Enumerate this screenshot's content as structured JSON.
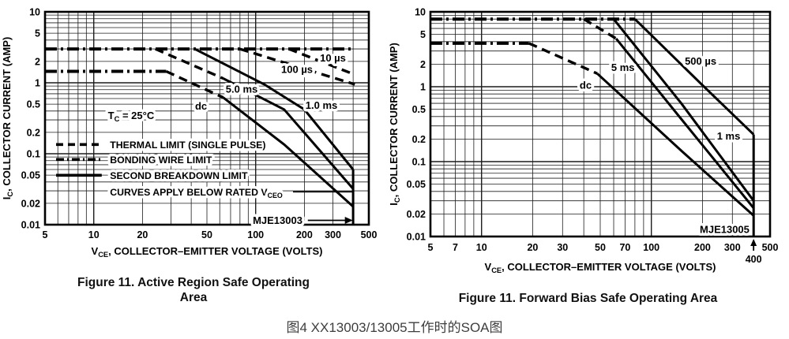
{
  "page": {
    "background": "#ffffff",
    "bottom_caption": "图4 XX13003/13005工作时的SOA图"
  },
  "figures": {
    "left": {
      "caption_line1": "Figure 11. Active Region Safe Operating",
      "caption_line2": "Area"
    },
    "right": {
      "caption": "Figure 11. Forward Bias Safe Operating Area"
    }
  },
  "chart_data": [
    {
      "type": "line",
      "device": "MJE13003",
      "title": "Figure 11. Active Region Safe Operating Area",
      "xlabel": "VCE, COLLECTOR–EMITTER VOLTAGE (VOLTS)",
      "ylabel": "IC, COLLECTOR CURRENT (AMP)",
      "xlabel_parts": [
        {
          "t": "V"
        },
        {
          "t": "CE",
          "sub": true
        },
        {
          "t": ", COLLECTOR–EMITTER VOLTAGE (VOLTS)"
        }
      ],
      "ylabel_parts": [
        {
          "t": "I"
        },
        {
          "t": "C",
          "sub": true
        },
        {
          "t": ", COLLECTOR CURRENT (AMP)"
        }
      ],
      "x_scale": "log",
      "y_scale": "log",
      "xlim": [
        5,
        500
      ],
      "ylim": [
        0.01,
        10
      ],
      "grid": true,
      "x_ticks": [
        {
          "v": 5,
          "t": "5"
        },
        {
          "v": 10,
          "t": "10"
        },
        {
          "v": 20,
          "t": "20"
        },
        {
          "v": 50,
          "t": "50"
        },
        {
          "v": 100,
          "t": "100"
        },
        {
          "v": 200,
          "t": "200"
        },
        {
          "v": 300,
          "t": "300"
        },
        {
          "v": 500,
          "t": "500"
        }
      ],
      "y_ticks": [
        {
          "v": 10,
          "t": "10"
        },
        {
          "v": 5,
          "t": "5"
        },
        {
          "v": 2,
          "t": "2"
        },
        {
          "v": 1,
          "t": "1"
        },
        {
          "v": 0.5,
          "t": "0.5"
        },
        {
          "v": 0.2,
          "t": "0.2"
        },
        {
          "v": 0.1,
          "t": "0.1"
        },
        {
          "v": 0.05,
          "t": "0.05"
        },
        {
          "v": 0.02,
          "t": "0.02"
        },
        {
          "v": 0.01,
          "t": "0.01"
        }
      ],
      "note": {
        "parts": [
          {
            "t": "T"
          },
          {
            "t": "C",
            "sub": true
          },
          {
            "t": " = 25°C"
          }
        ],
        "v": 17,
        "i": 0.34
      },
      "series": [
        {
          "name": "bonding-wire-limit-peak",
          "style": "dashdot",
          "w": 4,
          "points": [
            [
              5,
              3
            ],
            [
              390,
              3
            ]
          ]
        },
        {
          "name": "bonding-wire-limit-continuous",
          "style": "dashdot",
          "w": 4,
          "points": [
            [
              5,
              1.45
            ],
            [
              28,
              1.45
            ]
          ]
        },
        {
          "name": "thermal-limit-10us",
          "style": "dashed",
          "w": 3.4,
          "points": [
            [
              160,
              3
            ],
            [
              410,
              1.3
            ]
          ]
        },
        {
          "name": "thermal-limit-100us",
          "style": "dashed",
          "w": 3.4,
          "points": [
            [
              80,
              3
            ],
            [
              410,
              0.95
            ]
          ]
        },
        {
          "name": "thermal-limit-5ms",
          "style": "dashed",
          "w": 3.4,
          "points": [
            [
              24,
              3
            ],
            [
              63,
              1.15
            ]
          ]
        },
        {
          "name": "second-breakdown-5ms",
          "style": "solid",
          "w": 3,
          "points": [
            [
              63,
              1.15
            ],
            [
              150,
              0.42
            ],
            [
              400,
              0.032
            ]
          ]
        },
        {
          "name": "second-breakdown-1ms",
          "style": "solid",
          "w": 3,
          "points": [
            [
              42,
              3
            ],
            [
              113,
              0.95
            ],
            [
              200,
              0.42
            ],
            [
              400,
              0.06
            ]
          ]
        },
        {
          "name": "thermal-limit-dc",
          "style": "dashed",
          "w": 3.4,
          "points": [
            [
              28,
              1.45
            ],
            [
              63,
              0.62
            ]
          ]
        },
        {
          "name": "second-breakdown-dc",
          "style": "solid",
          "w": 3,
          "points": [
            [
              63,
              0.62
            ],
            [
              150,
              0.135
            ],
            [
              400,
              0.018
            ]
          ]
        },
        {
          "name": "vceo-limit-400v",
          "style": "solid",
          "w": 3,
          "points": [
            [
              400,
              0.06
            ],
            [
              400,
              0.01
            ]
          ]
        }
      ],
      "curve_labels": [
        {
          "text": "10 µs",
          "v": 300,
          "i": 2.25
        },
        {
          "text": "100 µs",
          "v": 180,
          "i": 1.55
        },
        {
          "text": "5.0 ms",
          "v": 82,
          "i": 0.82
        },
        {
          "text": "dc",
          "v": 46,
          "i": 0.47
        },
        {
          "text": "1.0 ms",
          "v": 255,
          "i": 0.48
        }
      ],
      "legend": {
        "sample_v1": 5.85,
        "sample_v2": 11.2,
        "text_v": 12.6,
        "rows": [
          {
            "style": "dashed",
            "i": 0.135,
            "parts": [
              {
                "t": "THERMAL LIMIT (SINGLE PULSE)"
              }
            ]
          },
          {
            "style": "dashdot",
            "i": 0.083,
            "parts": [
              {
                "t": "BONDING WIRE LIMIT"
              }
            ]
          },
          {
            "style": "solid",
            "i": 0.0497,
            "parts": [
              {
                "t": "SECOND BREAKDOWN LIMIT"
              }
            ]
          },
          {
            "style": "none",
            "i": 0.0288,
            "parts": [
              {
                "t": "CURVES APPLY BELOW RATED V"
              },
              {
                "t": "CEO",
                "sub": true
              }
            ]
          }
        ]
      },
      "annotations": [
        {
          "type": "hline",
          "i": 0.029,
          "from_v": 170,
          "to_v": 398
        },
        {
          "type": "arrow-label",
          "text": "MJE13003",
          "text_v": 96,
          "line_from_v": 210,
          "to_v": 398,
          "i": 0.0115
        }
      ]
    },
    {
      "type": "line",
      "device": "MJE13005",
      "title": "Figure 11. Forward Bias Safe Operating Area",
      "xlabel": "VCE, COLLECTOR–EMITTER VOLTAGE (VOLTS)",
      "ylabel": "IC, COLLECTOR CURRENT (AMP)",
      "xlabel_parts": [
        {
          "t": "V"
        },
        {
          "t": "CE",
          "sub": true
        },
        {
          "t": ", COLLECTOR–EMITTER VOLTAGE (VOLTS)"
        }
      ],
      "ylabel_parts": [
        {
          "t": "I"
        },
        {
          "t": "C",
          "sub": true
        },
        {
          "t": ", COLLECTOR CURRENT (AMP)"
        }
      ],
      "x_scale": "log",
      "y_scale": "log",
      "xlim": [
        5,
        500
      ],
      "ylim": [
        0.01,
        10
      ],
      "grid": true,
      "x_ticks": [
        {
          "v": 5,
          "t": "5"
        },
        {
          "v": 7,
          "t": "7"
        },
        {
          "v": 10,
          "t": "10"
        },
        {
          "v": 20,
          "t": "20"
        },
        {
          "v": 30,
          "t": "30"
        },
        {
          "v": 50,
          "t": "50"
        },
        {
          "v": 70,
          "t": "70"
        },
        {
          "v": 100,
          "t": "100"
        },
        {
          "v": 200,
          "t": "200"
        },
        {
          "v": 300,
          "t": "300"
        },
        {
          "v": 500,
          "t": "500"
        }
      ],
      "y_ticks": [
        {
          "v": 10,
          "t": "10"
        },
        {
          "v": 5,
          "t": "5"
        },
        {
          "v": 2,
          "t": "2"
        },
        {
          "v": 1,
          "t": "1"
        },
        {
          "v": 0.5,
          "t": "0.5"
        },
        {
          "v": 0.2,
          "t": "0.2"
        },
        {
          "v": 0.1,
          "t": "0.1"
        },
        {
          "v": 0.05,
          "t": "0.05"
        },
        {
          "v": 0.02,
          "t": "0.02"
        },
        {
          "v": 0.01,
          "t": "0.01"
        }
      ],
      "x_callout": {
        "v": 400,
        "label": "400"
      },
      "series": [
        {
          "name": "bonding-wire-limit-peak",
          "style": "dashdot",
          "w": 4,
          "points": [
            [
              5,
              8
            ],
            [
              80,
              8
            ]
          ]
        },
        {
          "name": "bonding-wire-limit-continuous",
          "style": "dashdot",
          "w": 4,
          "points": [
            [
              5,
              3.8
            ],
            [
              19,
              3.8
            ]
          ]
        },
        {
          "name": "thermal-limit-dc",
          "style": "dashed",
          "w": 3.4,
          "points": [
            [
              19,
              3.8
            ],
            [
              48,
              1.5
            ]
          ]
        },
        {
          "name": "second-breakdown-dc",
          "style": "solid",
          "w": 3,
          "points": [
            [
              48,
              1.5
            ],
            [
              150,
              0.14
            ],
            [
              400,
              0.019
            ]
          ]
        },
        {
          "name": "thermal-limit-5ms",
          "style": "dashed",
          "w": 3.4,
          "points": [
            [
              40,
              8
            ],
            [
              62,
              4.4
            ]
          ]
        },
        {
          "name": "second-breakdown-5ms",
          "style": "solid",
          "w": 3,
          "points": [
            [
              62,
              4.4
            ],
            [
              150,
              0.37
            ],
            [
              400,
              0.024
            ]
          ]
        },
        {
          "name": "second-breakdown-1ms",
          "style": "solid",
          "w": 3,
          "points": [
            [
              60,
              8
            ],
            [
              150,
              0.6
            ],
            [
              400,
              0.03
            ]
          ]
        },
        {
          "name": "second-breakdown-500us",
          "style": "solid",
          "w": 3,
          "points": [
            [
              80,
              8
            ],
            [
              200,
              1.05
            ],
            [
              400,
              0.23
            ]
          ]
        },
        {
          "name": "vceo-limit-400v",
          "style": "solid",
          "w": 3,
          "points": [
            [
              400,
              0.23
            ],
            [
              400,
              0.01
            ]
          ]
        }
      ],
      "curve_labels": [
        {
          "text": "dc",
          "v": 41,
          "i": 1.05
        },
        {
          "text": "5 ms",
          "v": 68,
          "i": 1.8
        },
        {
          "text": "500 µs",
          "v": 195,
          "i": 2.2
        },
        {
          "text": "1 ms",
          "v": 285,
          "i": 0.22
        },
        {
          "text": "MJE13005",
          "v": 270,
          "i": 0.0125
        }
      ],
      "annotations": []
    }
  ]
}
